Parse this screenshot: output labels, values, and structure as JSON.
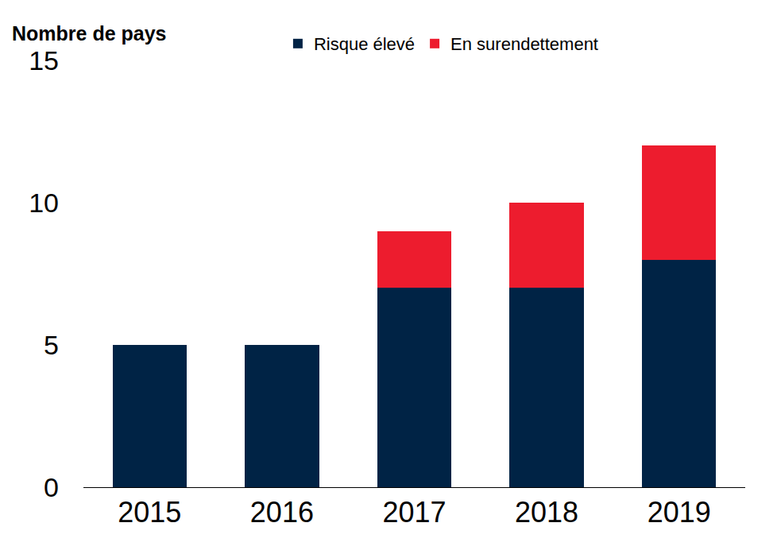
{
  "chart_data": {
    "type": "bar",
    "stacked": true,
    "ylabel": "Nombre de pays",
    "categories": [
      "2015",
      "2016",
      "2017",
      "2018",
      "2019"
    ],
    "series": [
      {
        "name": "Risque élevé",
        "color": "#002345",
        "values": [
          5,
          5,
          7,
          7,
          8
        ]
      },
      {
        "name": "En surendettement",
        "color": "#ED1C2E",
        "values": [
          0,
          0,
          2,
          3,
          4
        ]
      }
    ],
    "ylim": [
      0,
      15
    ],
    "yticks": [
      0,
      5,
      10,
      15
    ],
    "grid": false,
    "legend": "top"
  }
}
